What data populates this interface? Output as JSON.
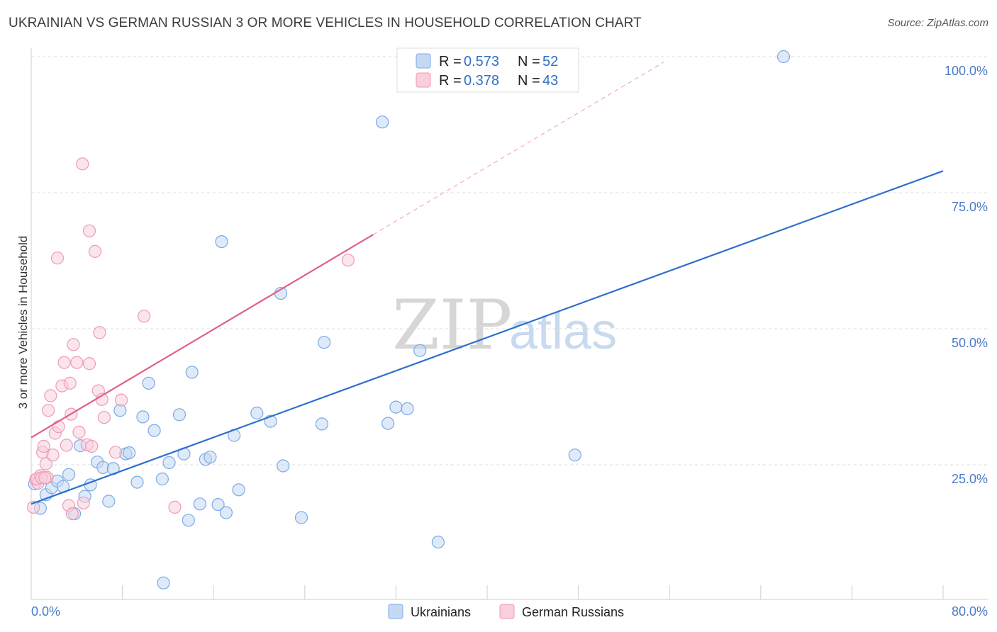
{
  "header": {
    "title": "UKRAINIAN VS GERMAN RUSSIAN 3 OR MORE VEHICLES IN HOUSEHOLD CORRELATION CHART",
    "source": "Source: ZipAtlas.com"
  },
  "watermark": {
    "zip": "ZIP",
    "atlas": "atlas"
  },
  "chart_data": {
    "type": "scatter",
    "title": "UKRAINIAN VS GERMAN RUSSIAN 3 OR MORE VEHICLES IN HOUSEHOLD CORRELATION CHART",
    "xlabel": "",
    "ylabel": "3 or more Vehicles in Household",
    "xlim": [
      0,
      80
    ],
    "ylim": [
      0,
      103
    ],
    "x_tick_labels": {
      "min": "0.0%",
      "max": "80.0%"
    },
    "y_ticks": [
      {
        "value": 25,
        "label": "25.0%"
      },
      {
        "value": 50,
        "label": "50.0%"
      },
      {
        "value": 75,
        "label": "75.0%"
      },
      {
        "value": 100,
        "label": "100.0%"
      }
    ],
    "grid": true,
    "legend": {
      "r_label": "R =",
      "n_label": "N =",
      "entries": [
        {
          "name": "Ukrainians",
          "r": "0.573",
          "n": "52"
        },
        {
          "name": "German Russians",
          "r": "0.378",
          "n": "43"
        }
      ]
    },
    "series": [
      {
        "name": "Ukrainians",
        "color": "#7aaae6",
        "fill": "#c5d9f3",
        "line_color": "#2e6fce",
        "trend": {
          "x": [
            0,
            80
          ],
          "y": [
            17.8,
            79.0
          ]
        },
        "points": [
          [
            0.3,
            21.5
          ],
          [
            0.8,
            17.0
          ],
          [
            1.3,
            19.5
          ],
          [
            1.8,
            20.8
          ],
          [
            2.3,
            22.0
          ],
          [
            2.8,
            21.0
          ],
          [
            3.3,
            23.2
          ],
          [
            3.8,
            16.0
          ],
          [
            4.3,
            28.5
          ],
          [
            4.7,
            19.2
          ],
          [
            5.2,
            21.3
          ],
          [
            5.8,
            25.5
          ],
          [
            6.3,
            24.5
          ],
          [
            6.8,
            18.3
          ],
          [
            7.2,
            24.3
          ],
          [
            7.8,
            35.0
          ],
          [
            8.3,
            27.0
          ],
          [
            8.6,
            27.2
          ],
          [
            9.3,
            21.8
          ],
          [
            9.8,
            33.8
          ],
          [
            10.3,
            40.0
          ],
          [
            10.8,
            31.3
          ],
          [
            11.5,
            22.4
          ],
          [
            12.1,
            25.4
          ],
          [
            13.0,
            34.2
          ],
          [
            13.4,
            27.0
          ],
          [
            13.8,
            14.8
          ],
          [
            14.1,
            42.0
          ],
          [
            14.8,
            17.8
          ],
          [
            15.3,
            26.0
          ],
          [
            15.7,
            26.4
          ],
          [
            16.4,
            17.7
          ],
          [
            17.1,
            16.2
          ],
          [
            16.7,
            66.0
          ],
          [
            17.8,
            30.4
          ],
          [
            18.2,
            20.4
          ],
          [
            19.8,
            34.5
          ],
          [
            21.0,
            33.0
          ],
          [
            21.9,
            56.5
          ],
          [
            22.1,
            24.8
          ],
          [
            23.7,
            15.3
          ],
          [
            25.5,
            32.5
          ],
          [
            25.7,
            47.5
          ],
          [
            30.8,
            88.0
          ],
          [
            31.3,
            32.6
          ],
          [
            32.0,
            35.6
          ],
          [
            33.0,
            35.3
          ],
          [
            34.1,
            46.0
          ],
          [
            35.7,
            10.8
          ],
          [
            11.6,
            3.3
          ],
          [
            47.7,
            26.8
          ],
          [
            66.0,
            100.0
          ]
        ]
      },
      {
        "name": "German Russians",
        "color": "#ef9ab5",
        "fill": "#f8cfdc",
        "line_color": "#e0608a",
        "trend": {
          "x": [
            0,
            30
          ],
          "y": [
            30.0,
            67.3
          ]
        },
        "trend_ext": {
          "x": [
            30,
            55.5
          ],
          "y": [
            67.3,
            99.0
          ]
        },
        "points": [
          [
            0.2,
            17.2
          ],
          [
            0.4,
            22.3
          ],
          [
            0.6,
            21.6
          ],
          [
            0.8,
            23.0
          ],
          [
            1.0,
            27.3
          ],
          [
            1.1,
            28.4
          ],
          [
            1.3,
            25.2
          ],
          [
            1.4,
            22.7
          ],
          [
            1.5,
            35.0
          ],
          [
            1.7,
            37.7
          ],
          [
            1.9,
            26.8
          ],
          [
            2.1,
            30.8
          ],
          [
            2.4,
            32.0
          ],
          [
            2.3,
            63.0
          ],
          [
            2.7,
            39.5
          ],
          [
            2.9,
            43.8
          ],
          [
            3.1,
            28.6
          ],
          [
            3.3,
            17.5
          ],
          [
            3.4,
            40.0
          ],
          [
            3.5,
            34.3
          ],
          [
            3.6,
            16.0
          ],
          [
            3.7,
            47.1
          ],
          [
            4.0,
            43.8
          ],
          [
            4.2,
            31.0
          ],
          [
            4.6,
            18.0
          ],
          [
            4.5,
            80.3
          ],
          [
            4.9,
            28.7
          ],
          [
            5.1,
            68.0
          ],
          [
            5.1,
            43.6
          ],
          [
            5.3,
            28.4
          ],
          [
            5.6,
            64.2
          ],
          [
            5.9,
            38.6
          ],
          [
            6.0,
            49.3
          ],
          [
            6.2,
            37.0
          ],
          [
            6.4,
            33.7
          ],
          [
            7.4,
            27.3
          ],
          [
            7.9,
            36.9
          ],
          [
            9.9,
            52.3
          ],
          [
            12.6,
            17.2
          ],
          [
            27.8,
            62.6
          ],
          [
            0.5,
            22.4
          ],
          [
            0.9,
            22.6
          ],
          [
            1.2,
            22.6
          ]
        ]
      }
    ]
  }
}
